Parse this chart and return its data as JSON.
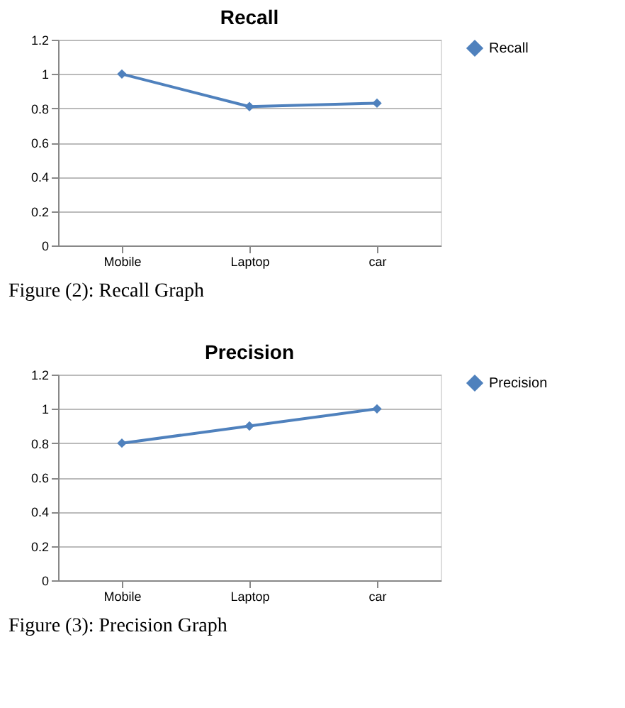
{
  "chart_data": [
    {
      "type": "line",
      "title": "Recall",
      "categories": [
        "Mobile",
        "Laptop",
        "car"
      ],
      "series": [
        {
          "name": "Recall",
          "color": "#4f81bd",
          "values": [
            1,
            0.81,
            0.83
          ]
        }
      ],
      "ylim": [
        0,
        1.2
      ],
      "yticks": [
        0,
        0.2,
        0.4,
        0.6,
        0.8,
        1,
        1.2
      ],
      "grid": "y",
      "legend": "right",
      "marker": "diamond",
      "annotations": [
        "Figure (2): Recall Graph"
      ]
    },
    {
      "type": "line",
      "title": "Precision",
      "categories": [
        "Mobile",
        "Laptop",
        "car"
      ],
      "series": [
        {
          "name": "Precision",
          "color": "#4f81bd",
          "values": [
            0.8,
            0.9,
            1
          ]
        }
      ],
      "ylim": [
        0,
        1.2
      ],
      "yticks": [
        0,
        0.2,
        0.4,
        0.6,
        0.8,
        1,
        1.2
      ],
      "grid": "y",
      "legend": "right",
      "marker": "diamond",
      "annotations": [
        "Figure (3): Precision Graph"
      ]
    }
  ]
}
